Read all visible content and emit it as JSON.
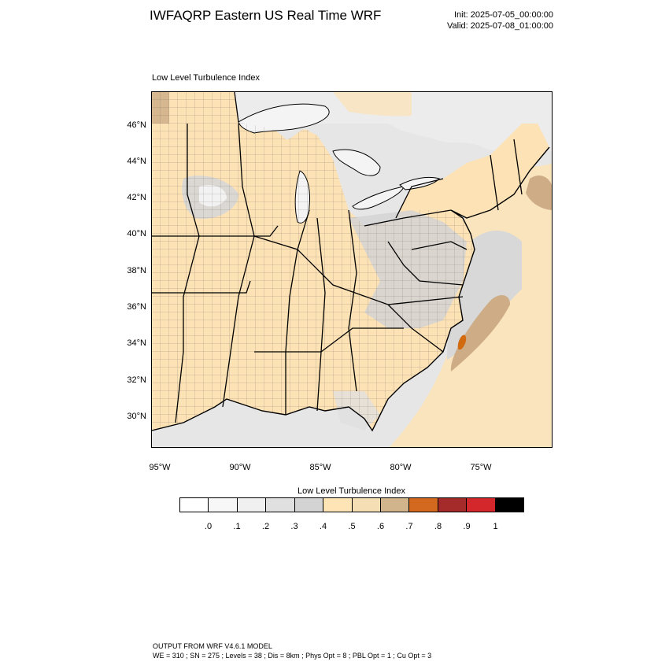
{
  "header": {
    "title": "IWFAQRP Eastern US Real Time WRF",
    "init": "Init: 2025-07-05_00:00:00",
    "valid": "Valid: 2025-07-08_01:00:00"
  },
  "map": {
    "subtitle": "Low Level Turbulence Index",
    "lat_labels": [
      "46°N",
      "44°N",
      "42°N",
      "40°N",
      "38°N",
      "36°N",
      "34°N",
      "32°N",
      "30°N"
    ],
    "lon_labels": [
      "95°W",
      "90°W",
      "85°W",
      "80°W",
      "75°W"
    ],
    "colors": {
      "land_base": "#fde2b5",
      "lake": "#f4f4f4",
      "sea_light": "#e4e4e4",
      "sea_mid": "#d2d2d2",
      "tan": "#cdac86",
      "orange": "#d26a10"
    }
  },
  "colorbar": {
    "title": "Low Level Turbulence Index",
    "colors": [
      "#ffffff",
      "#f7f7f7",
      "#f0f0f0",
      "#e0e0e0",
      "#d3d3d3",
      "#ffe4b5",
      "#f5deb3",
      "#d2b48c",
      "#d2691e",
      "#a52a2a",
      "#d4272c",
      "#000000"
    ],
    "labels": [
      ".0",
      ".1",
      ".2",
      ".3",
      ".4",
      ".5",
      ".6",
      ".7",
      ".8",
      ".9",
      "1"
    ]
  },
  "footer": {
    "line1": "OUTPUT FROM WRF V4.6.1 MODEL",
    "line2": "WE = 310 ; SN = 275 ; Levels = 38 ; Dis = 8km ; Phys Opt = 8 ; PBL Opt = 1 ; Cu Opt = 3"
  }
}
